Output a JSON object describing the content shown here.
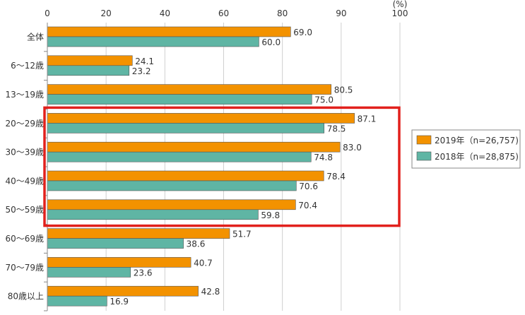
{
  "chart_data": {
    "type": "bar",
    "orientation": "horizontal",
    "unit_label": "(%)",
    "xlim": [
      0,
      100
    ],
    "ticks": [
      "0",
      "20",
      "40",
      "60",
      "80",
      "90",
      "100"
    ],
    "categories": [
      "全体",
      "6～12歳",
      "13～19歳",
      "20～29歳",
      "30～39歳",
      "40～49歳",
      "50～59歳",
      "60～69歳",
      "70～79歳",
      "80歳以上"
    ],
    "series": [
      {
        "name": "2019年（n=26,757)",
        "color": "#f39200",
        "values": [
          69.0,
          24.1,
          80.5,
          87.1,
          83.0,
          78.4,
          70.4,
          51.7,
          40.7,
          42.8
        ],
        "labels": [
          "69.0",
          "24.1",
          "80.5",
          "87.1",
          "83.0",
          "78.4",
          "70.4",
          "51.7",
          "40.7",
          "42.8"
        ]
      },
      {
        "name": "2018年（n=28,875)",
        "color": "#5fb5a4",
        "values": [
          60.0,
          23.2,
          75.0,
          78.5,
          74.8,
          70.6,
          59.8,
          38.6,
          23.6,
          16.9
        ],
        "labels": [
          "60.0",
          "23.2",
          "75.0",
          "78.5",
          "74.8",
          "70.6",
          "59.8",
          "38.6",
          "23.6",
          "16.9"
        ]
      }
    ],
    "legend_position": "right",
    "grid": true,
    "highlight": {
      "from": "20～29歳",
      "to": "50～59歳",
      "color": "#e2201c"
    }
  }
}
